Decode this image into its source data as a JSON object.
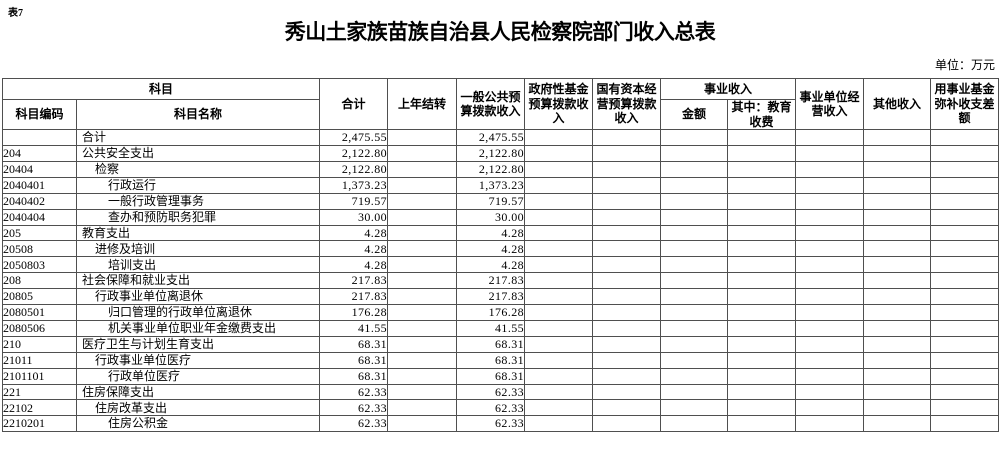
{
  "page": {
    "label": "表7",
    "title": "秀山土家族苗族自治县人民检察院部门收入总表",
    "unit_note": "单位：万元"
  },
  "colors": {
    "background": "#ffffff",
    "text": "#000000",
    "border": "#4f4f4f"
  },
  "table": {
    "header": {
      "subject": "科目",
      "subject_code": "科目编码",
      "subject_name": "科目名称",
      "total": "合计",
      "prev_year_carryover": "上年结转",
      "general_public_budget_income": "一般公共预算拨款收入",
      "gov_fund_budget_income": "政府性基金预算拨款收入",
      "state_capital_budget_income": "国有资本经营预算拨款收入",
      "business_income": "事业收入",
      "business_income_amount": "金额",
      "business_income_edu_fee": "其中：教育收费",
      "business_unit_operating_income": "事业单位经营收入",
      "other_income": "其他收入",
      "fund_balance_subsidy": "用事业基金弥补收支差额"
    },
    "value_column_keys": [
      "total",
      "prev_year_carryover",
      "general_public_budget_income",
      "gov_fund_budget_income",
      "state_capital_budget_income",
      "business_income_amount",
      "business_income_edu_fee",
      "business_unit_operating_income",
      "other_income",
      "fund_balance_subsidy"
    ],
    "rows": [
      {
        "code": "",
        "name": "合计",
        "indent": 0,
        "values": [
          "2,475.55",
          "",
          "2,475.55",
          "",
          "",
          "",
          "",
          "",
          "",
          ""
        ]
      },
      {
        "code": "204",
        "name": "公共安全支出",
        "indent": 0,
        "values": [
          "2,122.80",
          "",
          "2,122.80",
          "",
          "",
          "",
          "",
          "",
          "",
          ""
        ]
      },
      {
        "code": "20404",
        "name": "检察",
        "indent": 1,
        "values": [
          "2,122.80",
          "",
          "2,122.80",
          "",
          "",
          "",
          "",
          "",
          "",
          ""
        ]
      },
      {
        "code": "2040401",
        "name": "行政运行",
        "indent": 2,
        "values": [
          "1,373.23",
          "",
          "1,373.23",
          "",
          "",
          "",
          "",
          "",
          "",
          ""
        ]
      },
      {
        "code": "2040402",
        "name": "一般行政管理事务",
        "indent": 2,
        "values": [
          "719.57",
          "",
          "719.57",
          "",
          "",
          "",
          "",
          "",
          "",
          ""
        ]
      },
      {
        "code": "2040404",
        "name": "查办和预防职务犯罪",
        "indent": 2,
        "values": [
          "30.00",
          "",
          "30.00",
          "",
          "",
          "",
          "",
          "",
          "",
          ""
        ]
      },
      {
        "code": "205",
        "name": "教育支出",
        "indent": 0,
        "values": [
          "4.28",
          "",
          "4.28",
          "",
          "",
          "",
          "",
          "",
          "",
          ""
        ]
      },
      {
        "code": "20508",
        "name": "进修及培训",
        "indent": 1,
        "values": [
          "4.28",
          "",
          "4.28",
          "",
          "",
          "",
          "",
          "",
          "",
          ""
        ]
      },
      {
        "code": "2050803",
        "name": "培训支出",
        "indent": 2,
        "values": [
          "4.28",
          "",
          "4.28",
          "",
          "",
          "",
          "",
          "",
          "",
          ""
        ]
      },
      {
        "code": "208",
        "name": "社会保障和就业支出",
        "indent": 0,
        "values": [
          "217.83",
          "",
          "217.83",
          "",
          "",
          "",
          "",
          "",
          "",
          ""
        ]
      },
      {
        "code": "20805",
        "name": "行政事业单位离退休",
        "indent": 1,
        "values": [
          "217.83",
          "",
          "217.83",
          "",
          "",
          "",
          "",
          "",
          "",
          ""
        ]
      },
      {
        "code": "2080501",
        "name": "归口管理的行政单位离退休",
        "indent": 2,
        "values": [
          "176.28",
          "",
          "176.28",
          "",
          "",
          "",
          "",
          "",
          "",
          ""
        ]
      },
      {
        "code": "2080506",
        "name": "机关事业单位职业年金缴费支出",
        "indent": 2,
        "values": [
          "41.55",
          "",
          "41.55",
          "",
          "",
          "",
          "",
          "",
          "",
          ""
        ]
      },
      {
        "code": "210",
        "name": "医疗卫生与计划生育支出",
        "indent": 0,
        "values": [
          "68.31",
          "",
          "68.31",
          "",
          "",
          "",
          "",
          "",
          "",
          ""
        ]
      },
      {
        "code": "21011",
        "name": "行政事业单位医疗",
        "indent": 1,
        "values": [
          "68.31",
          "",
          "68.31",
          "",
          "",
          "",
          "",
          "",
          "",
          ""
        ]
      },
      {
        "code": "2101101",
        "name": "行政单位医疗",
        "indent": 2,
        "values": [
          "68.31",
          "",
          "68.31",
          "",
          "",
          "",
          "",
          "",
          "",
          ""
        ]
      },
      {
        "code": "221",
        "name": "住房保障支出",
        "indent": 0,
        "values": [
          "62.33",
          "",
          "62.33",
          "",
          "",
          "",
          "",
          "",
          "",
          ""
        ]
      },
      {
        "code": "22102",
        "name": "住房改革支出",
        "indent": 1,
        "values": [
          "62.33",
          "",
          "62.33",
          "",
          "",
          "",
          "",
          "",
          "",
          ""
        ]
      },
      {
        "code": "2210201",
        "name": "住房公积金",
        "indent": 2,
        "values": [
          "62.33",
          "",
          "62.33",
          "",
          "",
          "",
          "",
          "",
          "",
          ""
        ]
      }
    ]
  }
}
